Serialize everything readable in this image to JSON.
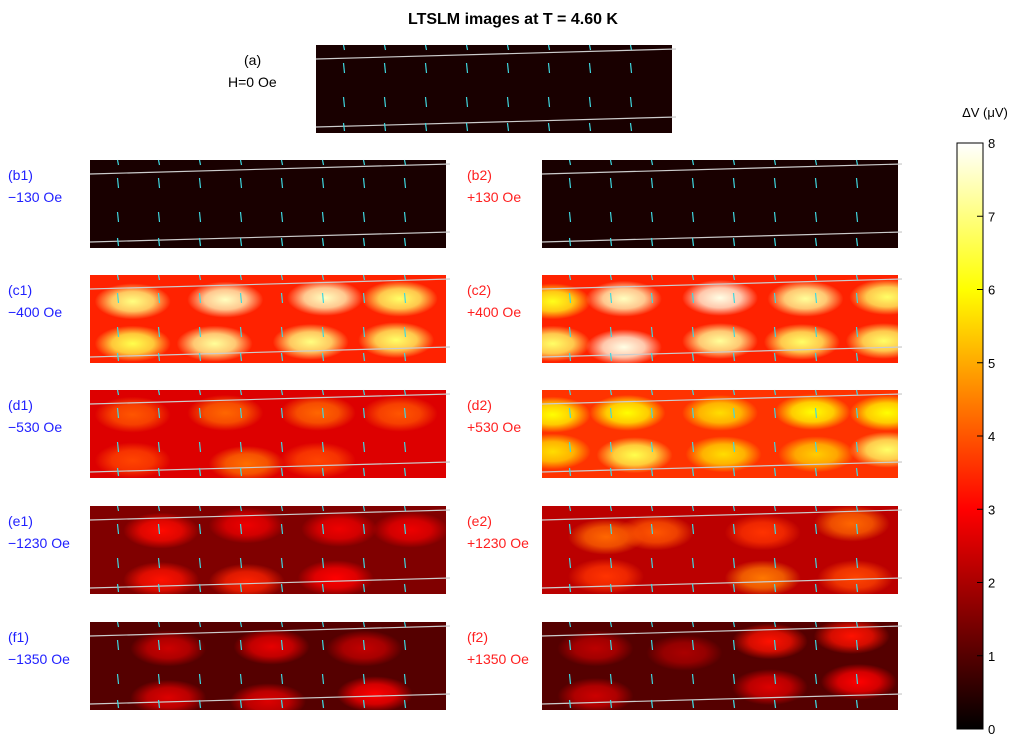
{
  "chart_data": {
    "type": "heatmap",
    "title": "LTSLM images at T = 4.60 K",
    "colorbar": {
      "label": "ΔV (μV)",
      "range": [
        0,
        8
      ],
      "ticks": [
        "0",
        "1",
        "2",
        "3",
        "4",
        "5",
        "6",
        "7",
        "8"
      ],
      "colormap": "hot"
    },
    "colors": {
      "negative_field_label": "#1f1fff",
      "positive_field_label": "#ff1f1f",
      "neutral_label": "#000000",
      "vertical_markers": "#3fd8e0",
      "edge_lines": "#cccccc"
    },
    "panels": [
      {
        "id": "a",
        "tag": "(a)",
        "field": "H=0 Oe",
        "color": "#000000",
        "base_level": 0.3,
        "spots": []
      },
      {
        "id": "b1",
        "tag": "(b1)",
        "field": "−130 Oe",
        "color": "#1f1fff",
        "base_level": 0.3,
        "spots": []
      },
      {
        "id": "b2",
        "tag": "(b2)",
        "field": "+130 Oe",
        "color": "#ff1f1f",
        "base_level": 0.3,
        "spots": []
      },
      {
        "id": "c1",
        "tag": "(c1)",
        "field": "−400 Oe",
        "color": "#1f1fff",
        "base_level": 3.4,
        "spots": [
          [
            0.12,
            0.3,
            7.0
          ],
          [
            0.38,
            0.28,
            7.5
          ],
          [
            0.66,
            0.26,
            7.5
          ],
          [
            0.87,
            0.27,
            6.8
          ],
          [
            0.12,
            0.78,
            6.6
          ],
          [
            0.35,
            0.78,
            7.2
          ],
          [
            0.62,
            0.76,
            7.0
          ],
          [
            0.86,
            0.74,
            6.8
          ]
        ]
      },
      {
        "id": "c2",
        "tag": "(c2)",
        "field": "+400 Oe",
        "color": "#ff1f1f",
        "base_level": 3.4,
        "spots": [
          [
            0.03,
            0.3,
            6.2
          ],
          [
            0.23,
            0.27,
            7.5
          ],
          [
            0.5,
            0.26,
            7.8
          ],
          [
            0.74,
            0.27,
            7.2
          ],
          [
            0.97,
            0.25,
            6.8
          ],
          [
            0.03,
            0.78,
            6.8
          ],
          [
            0.23,
            0.82,
            7.8
          ],
          [
            0.5,
            0.75,
            7.2
          ],
          [
            0.73,
            0.76,
            6.8
          ],
          [
            0.96,
            0.75,
            6.8
          ]
        ]
      },
      {
        "id": "d1",
        "tag": "(d1)",
        "field": "−530 Oe",
        "color": "#1f1fff",
        "base_level": 2.6,
        "spots": [
          [
            0.12,
            0.28,
            4.0
          ],
          [
            0.38,
            0.26,
            4.2
          ],
          [
            0.64,
            0.26,
            4.2
          ],
          [
            0.87,
            0.27,
            4.0
          ],
          [
            0.12,
            0.8,
            3.8
          ],
          [
            0.44,
            0.84,
            4.3
          ],
          [
            0.64,
            0.8,
            3.8
          ]
        ]
      },
      {
        "id": "d2",
        "tag": "(d2)",
        "field": "+530 Oe",
        "color": "#ff1f1f",
        "base_level": 3.6,
        "spots": [
          [
            0.03,
            0.28,
            6.0
          ],
          [
            0.24,
            0.26,
            6.0
          ],
          [
            0.5,
            0.26,
            5.6
          ],
          [
            0.76,
            0.25,
            6.0
          ],
          [
            0.97,
            0.26,
            6.0
          ],
          [
            0.03,
            0.7,
            5.6
          ],
          [
            0.26,
            0.74,
            6.6
          ],
          [
            0.51,
            0.73,
            5.6
          ],
          [
            0.77,
            0.73,
            5.4
          ],
          [
            0.97,
            0.68,
            6.8
          ]
        ]
      },
      {
        "id": "e1",
        "tag": "(e1)",
        "field": "−1230 Oe",
        "color": "#1f1fff",
        "base_level": 1.5,
        "spots": [
          [
            0.2,
            0.28,
            3.1
          ],
          [
            0.44,
            0.22,
            2.8
          ],
          [
            0.7,
            0.26,
            2.8
          ],
          [
            0.9,
            0.27,
            2.8
          ],
          [
            0.2,
            0.84,
            3.2
          ],
          [
            0.44,
            0.86,
            3.4
          ],
          [
            0.69,
            0.82,
            3.0
          ]
        ]
      },
      {
        "id": "e2",
        "tag": "(e2)",
        "field": "+1230 Oe",
        "color": "#ff1f1f",
        "base_level": 2.2,
        "spots": [
          [
            0.18,
            0.35,
            4.2
          ],
          [
            0.32,
            0.3,
            4.0
          ],
          [
            0.62,
            0.3,
            3.6
          ],
          [
            0.87,
            0.2,
            4.2
          ],
          [
            0.18,
            0.8,
            3.6
          ],
          [
            0.62,
            0.82,
            4.4
          ],
          [
            0.88,
            0.82,
            3.8
          ]
        ]
      },
      {
        "id": "f1",
        "tag": "(f1)",
        "field": "−1350 Oe",
        "color": "#1f1fff",
        "base_level": 1.0,
        "spots": [
          [
            0.22,
            0.3,
            2.4
          ],
          [
            0.51,
            0.28,
            2.7
          ],
          [
            0.77,
            0.3,
            2.3
          ],
          [
            0.22,
            0.86,
            2.6
          ],
          [
            0.5,
            0.9,
            2.6
          ],
          [
            0.8,
            0.82,
            3.0
          ]
        ]
      },
      {
        "id": "f2",
        "tag": "(f2)",
        "field": "+1350 Oe",
        "color": "#ff1f1f",
        "base_level": 1.0,
        "spots": [
          [
            0.15,
            0.3,
            2.2
          ],
          [
            0.4,
            0.35,
            2.0
          ],
          [
            0.64,
            0.22,
            3.2
          ],
          [
            0.87,
            0.16,
            3.2
          ],
          [
            0.15,
            0.84,
            2.4
          ],
          [
            0.64,
            0.74,
            2.6
          ],
          [
            0.89,
            0.68,
            3.0
          ]
        ]
      }
    ]
  }
}
